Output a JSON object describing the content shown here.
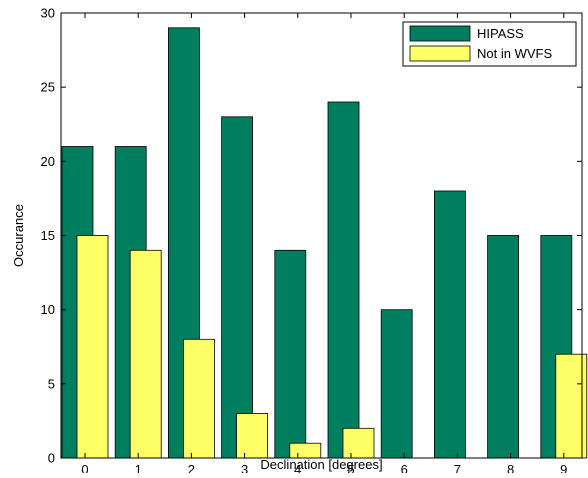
{
  "chart_data": {
    "type": "bar",
    "categories": [
      "0",
      "1",
      "2",
      "3",
      "4",
      "5",
      "6",
      "7",
      "8",
      "9"
    ],
    "series": [
      {
        "name": "HIPASS",
        "values": [
          21,
          21,
          29,
          23,
          14,
          24,
          10,
          18,
          15,
          15
        ],
        "color": "#007f60"
      },
      {
        "name": "Not in WVFS",
        "values": [
          15,
          14,
          8,
          3,
          1,
          2,
          0,
          0,
          0,
          7
        ],
        "color": "#ffff66"
      }
    ],
    "xlabel": "Declination [degrees]",
    "ylabel": "Occurance",
    "ylim": [
      0,
      30
    ],
    "yticks": [
      0,
      5,
      10,
      15,
      20,
      25,
      30
    ],
    "xticks": [
      "0",
      "1",
      "2",
      "3",
      "4",
      "5",
      "6",
      "7",
      "8",
      "9"
    ],
    "grid": false,
    "legend_position": "top-right"
  }
}
